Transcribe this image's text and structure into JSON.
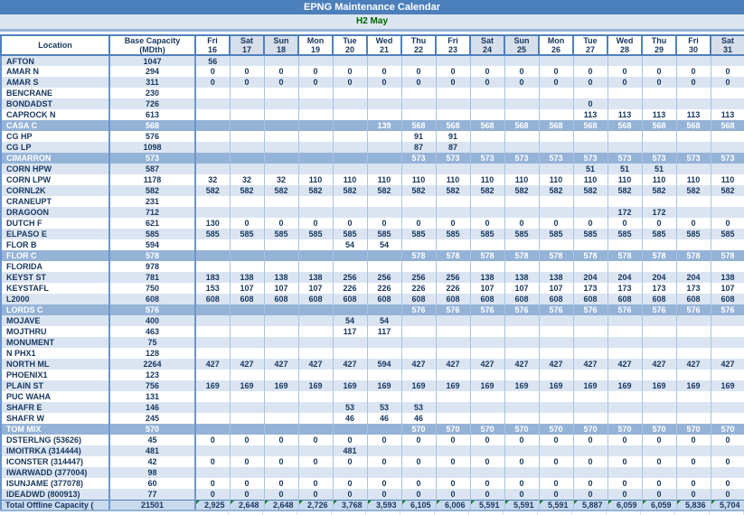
{
  "title": "EPNG Maintenance Calendar",
  "subtitle": "H2 May",
  "colors": {
    "title_bar": "#4C80BC",
    "subtitle_bg": "#DCE6F1",
    "subtitle_text": "#006600",
    "highlight_row_bg": "#95B3D7",
    "stripe_row_bg": "#DBE5F2",
    "weekend_header_bg": "#D6DFEA",
    "header_border": "#4F81BD",
    "text_dark_blue": "#17375E",
    "total_row_bg": "#C9DAEF",
    "comment_marker_green": "#1E7B1E"
  },
  "header": {
    "location_label": "Location",
    "capacity_label_line1": "Base Capacity",
    "capacity_label_line2": "(MDth)",
    "days": [
      {
        "name": "Fri",
        "num": "16",
        "weekend": false
      },
      {
        "name": "Sat",
        "num": "17",
        "weekend": true
      },
      {
        "name": "Sun",
        "num": "18",
        "weekend": true
      },
      {
        "name": "Mon",
        "num": "19",
        "weekend": false
      },
      {
        "name": "Tue",
        "num": "20",
        "weekend": false
      },
      {
        "name": "Wed",
        "num": "21",
        "weekend": false
      },
      {
        "name": "Thu",
        "num": "22",
        "weekend": false
      },
      {
        "name": "Fri",
        "num": "23",
        "weekend": false
      },
      {
        "name": "Sat",
        "num": "24",
        "weekend": true
      },
      {
        "name": "Sun",
        "num": "25",
        "weekend": true
      },
      {
        "name": "Mon",
        "num": "26",
        "weekend": false
      },
      {
        "name": "Tue",
        "num": "27",
        "weekend": false
      },
      {
        "name": "Wed",
        "num": "28",
        "weekend": false
      },
      {
        "name": "Thu",
        "num": "29",
        "weekend": false
      },
      {
        "name": "Fri",
        "num": "30",
        "weekend": false
      },
      {
        "name": "Sat",
        "num": "31",
        "weekend": true
      }
    ]
  },
  "rows": [
    {
      "location": "AFTON",
      "capacity": "1047",
      "highlight": false,
      "values": [
        "56",
        "",
        "",
        "",
        "",
        "",
        "",
        "",
        "",
        "",
        "",
        "",
        "",
        "",
        "",
        ""
      ]
    },
    {
      "location": "AMAR N",
      "capacity": "294",
      "highlight": false,
      "values": [
        "0",
        "0",
        "0",
        "0",
        "0",
        "0",
        "0",
        "0",
        "0",
        "0",
        "0",
        "0",
        "0",
        "0",
        "0",
        "0"
      ]
    },
    {
      "location": "AMAR S",
      "capacity": "311",
      "highlight": false,
      "values": [
        "0",
        "0",
        "0",
        "0",
        "0",
        "0",
        "0",
        "0",
        "0",
        "0",
        "0",
        "0",
        "0",
        "0",
        "0",
        "0"
      ]
    },
    {
      "location": "BENCRANE",
      "capacity": "230",
      "highlight": false,
      "values": [
        "",
        "",
        "",
        "",
        "",
        "",
        "",
        "",
        "",
        "",
        "",
        "",
        "",
        "",
        "",
        ""
      ]
    },
    {
      "location": "BONDADST",
      "capacity": "726",
      "highlight": false,
      "values": [
        "",
        "",
        "",
        "",
        "",
        "",
        "",
        "",
        "",
        "",
        "",
        "0",
        "",
        "",
        "",
        ""
      ]
    },
    {
      "location": "CAPROCK N",
      "capacity": "613",
      "highlight": false,
      "values": [
        "",
        "",
        "",
        "",
        "",
        "",
        "",
        "",
        "",
        "",
        "",
        "113",
        "113",
        "113",
        "113",
        "113"
      ]
    },
    {
      "location": "CASA C",
      "capacity": "568",
      "highlight": true,
      "values": [
        "",
        "",
        "",
        "",
        "",
        "139",
        "568",
        "568",
        "568",
        "568",
        "568",
        "568",
        "568",
        "568",
        "568",
        "568"
      ]
    },
    {
      "location": "CG HP",
      "capacity": "576",
      "highlight": false,
      "values": [
        "",
        "",
        "",
        "",
        "",
        "",
        "91",
        "91",
        "",
        "",
        "",
        "",
        "",
        "",
        "",
        ""
      ]
    },
    {
      "location": "CG LP",
      "capacity": "1098",
      "highlight": false,
      "values": [
        "",
        "",
        "",
        "",
        "",
        "",
        "87",
        "87",
        "",
        "",
        "",
        "",
        "",
        "",
        "",
        ""
      ]
    },
    {
      "location": "CIMARRON",
      "capacity": "573",
      "highlight": true,
      "values": [
        "",
        "",
        "",
        "",
        "",
        "",
        "573",
        "573",
        "573",
        "573",
        "573",
        "573",
        "573",
        "573",
        "573",
        "573"
      ]
    },
    {
      "location": "CORN HPW",
      "capacity": "587",
      "highlight": false,
      "values": [
        "",
        "",
        "",
        "",
        "",
        "",
        "",
        "",
        "",
        "",
        "",
        "51",
        "51",
        "51",
        "",
        ""
      ]
    },
    {
      "location": "CORN LPW",
      "capacity": "1178",
      "highlight": false,
      "values": [
        "32",
        "32",
        "32",
        "110",
        "110",
        "110",
        "110",
        "110",
        "110",
        "110",
        "110",
        "110",
        "110",
        "110",
        "110",
        "110"
      ]
    },
    {
      "location": "CORNL2K",
      "capacity": "582",
      "highlight": false,
      "values": [
        "582",
        "582",
        "582",
        "582",
        "582",
        "582",
        "582",
        "582",
        "582",
        "582",
        "582",
        "582",
        "582",
        "582",
        "582",
        "582"
      ]
    },
    {
      "location": "CRANEUPT",
      "capacity": "231",
      "highlight": false,
      "values": [
        "",
        "",
        "",
        "",
        "",
        "",
        "",
        "",
        "",
        "",
        "",
        "",
        "",
        "",
        "",
        ""
      ]
    },
    {
      "location": "DRAGOON",
      "capacity": "712",
      "highlight": false,
      "values": [
        "",
        "",
        "",
        "",
        "",
        "",
        "",
        "",
        "",
        "",
        "",
        "",
        "172",
        "172",
        "",
        ""
      ]
    },
    {
      "location": "DUTCH F",
      "capacity": "621",
      "highlight": false,
      "values": [
        "130",
        "0",
        "0",
        "0",
        "0",
        "0",
        "0",
        "0",
        "0",
        "0",
        "0",
        "0",
        "0",
        "0",
        "0",
        "0"
      ]
    },
    {
      "location": "ELPASO E",
      "capacity": "585",
      "highlight": false,
      "values": [
        "585",
        "585",
        "585",
        "585",
        "585",
        "585",
        "585",
        "585",
        "585",
        "585",
        "585",
        "585",
        "585",
        "585",
        "585",
        "585"
      ]
    },
    {
      "location": "FLOR B",
      "capacity": "594",
      "highlight": false,
      "values": [
        "",
        "",
        "",
        "",
        "54",
        "54",
        "",
        "",
        "",
        "",
        "",
        "",
        "",
        "",
        "",
        ""
      ]
    },
    {
      "location": "FLOR C",
      "capacity": "578",
      "highlight": true,
      "values": [
        "",
        "",
        "",
        "",
        "",
        "",
        "578",
        "578",
        "578",
        "578",
        "578",
        "578",
        "578",
        "578",
        "578",
        "578"
      ]
    },
    {
      "location": "FLORIDA",
      "capacity": "978",
      "highlight": false,
      "values": [
        "",
        "",
        "",
        "",
        "",
        "",
        "",
        "",
        "",
        "",
        "",
        "",
        "",
        "",
        "",
        ""
      ]
    },
    {
      "location": "KEYST ST",
      "capacity": "781",
      "highlight": false,
      "values": [
        "183",
        "138",
        "138",
        "138",
        "256",
        "256",
        "256",
        "256",
        "138",
        "138",
        "138",
        "204",
        "204",
        "204",
        "204",
        "138"
      ]
    },
    {
      "location": "KEYSTAFL",
      "capacity": "750",
      "highlight": false,
      "values": [
        "153",
        "107",
        "107",
        "107",
        "226",
        "226",
        "226",
        "226",
        "107",
        "107",
        "107",
        "173",
        "173",
        "173",
        "173",
        "107"
      ]
    },
    {
      "location": "L2000",
      "capacity": "608",
      "highlight": false,
      "values": [
        "608",
        "608",
        "608",
        "608",
        "608",
        "608",
        "608",
        "608",
        "608",
        "608",
        "608",
        "608",
        "608",
        "608",
        "608",
        "608"
      ]
    },
    {
      "location": "LORDS C",
      "capacity": "576",
      "highlight": true,
      "values": [
        "",
        "",
        "",
        "",
        "",
        "",
        "576",
        "576",
        "576",
        "576",
        "576",
        "576",
        "576",
        "576",
        "576",
        "576"
      ]
    },
    {
      "location": "MOJAVE",
      "capacity": "400",
      "highlight": false,
      "values": [
        "",
        "",
        "",
        "",
        "54",
        "54",
        "",
        "",
        "",
        "",
        "",
        "",
        "",
        "",
        "",
        ""
      ]
    },
    {
      "location": "MOJTHRU",
      "capacity": "463",
      "highlight": false,
      "values": [
        "",
        "",
        "",
        "",
        "117",
        "117",
        "",
        "",
        "",
        "",
        "",
        "",
        "",
        "",
        "",
        ""
      ]
    },
    {
      "location": "MONUMENT",
      "capacity": "75",
      "highlight": false,
      "values": [
        "",
        "",
        "",
        "",
        "",
        "",
        "",
        "",
        "",
        "",
        "",
        "",
        "",
        "",
        "",
        ""
      ]
    },
    {
      "location": "N PHX1",
      "capacity": "128",
      "highlight": false,
      "values": [
        "",
        "",
        "",
        "",
        "",
        "",
        "",
        "",
        "",
        "",
        "",
        "",
        "",
        "",
        "",
        ""
      ]
    },
    {
      "location": "NORTH ML",
      "capacity": "2264",
      "highlight": false,
      "values": [
        "427",
        "427",
        "427",
        "427",
        "427",
        "594",
        "427",
        "427",
        "427",
        "427",
        "427",
        "427",
        "427",
        "427",
        "427",
        "427"
      ]
    },
    {
      "location": "PHOENIX1",
      "capacity": "123",
      "highlight": false,
      "values": [
        "",
        "",
        "",
        "",
        "",
        "",
        "",
        "",
        "",
        "",
        "",
        "",
        "",
        "",
        "",
        ""
      ]
    },
    {
      "location": "PLAIN ST",
      "capacity": "756",
      "highlight": false,
      "values": [
        "169",
        "169",
        "169",
        "169",
        "169",
        "169",
        "169",
        "169",
        "169",
        "169",
        "169",
        "169",
        "169",
        "169",
        "169",
        "169"
      ]
    },
    {
      "location": "PUC WAHA",
      "capacity": "131",
      "highlight": false,
      "values": [
        "",
        "",
        "",
        "",
        "",
        "",
        "",
        "",
        "",
        "",
        "",
        "",
        "",
        "",
        "",
        ""
      ]
    },
    {
      "location": "SHAFR E",
      "capacity": "146",
      "highlight": false,
      "values": [
        "",
        "",
        "",
        "",
        "53",
        "53",
        "53",
        "",
        "",
        "",
        "",
        "",
        "",
        "",
        "",
        ""
      ]
    },
    {
      "location": "SHAFR W",
      "capacity": "245",
      "highlight": false,
      "values": [
        "",
        "",
        "",
        "",
        "46",
        "46",
        "46",
        "",
        "",
        "",
        "",
        "",
        "",
        "",
        "",
        ""
      ]
    },
    {
      "location": "TOM MIX",
      "capacity": "570",
      "highlight": true,
      "values": [
        "",
        "",
        "",
        "",
        "",
        "",
        "570",
        "570",
        "570",
        "570",
        "570",
        "570",
        "570",
        "570",
        "570",
        "570"
      ]
    },
    {
      "location": "DSTERLNG (53626)",
      "capacity": "45",
      "highlight": false,
      "values": [
        "0",
        "0",
        "0",
        "0",
        "0",
        "0",
        "0",
        "0",
        "0",
        "0",
        "0",
        "0",
        "0",
        "0",
        "0",
        "0"
      ]
    },
    {
      "location": "IMOITRKA (314444)",
      "capacity": "481",
      "highlight": false,
      "values": [
        "",
        "",
        "",
        "",
        "481",
        "",
        "",
        "",
        "",
        "",
        "",
        "",
        "",
        "",
        "",
        ""
      ]
    },
    {
      "location": "ICONSTER (314447)",
      "capacity": "42",
      "highlight": false,
      "values": [
        "0",
        "0",
        "0",
        "0",
        "0",
        "0",
        "0",
        "0",
        "0",
        "0",
        "0",
        "0",
        "0",
        "0",
        "0",
        "0"
      ]
    },
    {
      "location": "IWARWADD (377004)",
      "capacity": "98",
      "highlight": false,
      "values": [
        "",
        "",
        "",
        "",
        "",
        "",
        "",
        "",
        "",
        "",
        "",
        "",
        "",
        "",
        "",
        ""
      ]
    },
    {
      "location": "ISUNJAME (377078)",
      "capacity": "60",
      "highlight": false,
      "values": [
        "0",
        "0",
        "0",
        "0",
        "0",
        "0",
        "0",
        "0",
        "0",
        "0",
        "0",
        "0",
        "0",
        "0",
        "0",
        "0"
      ]
    },
    {
      "location": "IDEADWD (800913)",
      "capacity": "77",
      "highlight": false,
      "values": [
        "0",
        "0",
        "0",
        "0",
        "0",
        "0",
        "0",
        "0",
        "0",
        "0",
        "0",
        "0",
        "0",
        "0",
        "0",
        "0"
      ]
    }
  ],
  "total_row": {
    "label": "Total Offline Capacity (",
    "capacity": "21501",
    "values": [
      "2,925",
      "2,648",
      "2,648",
      "2,726",
      "3,768",
      "3,593",
      "6,105",
      "6,006",
      "5,591",
      "5,591",
      "5,591",
      "5,887",
      "6,059",
      "6,059",
      "5,836",
      "5,704"
    ]
  }
}
